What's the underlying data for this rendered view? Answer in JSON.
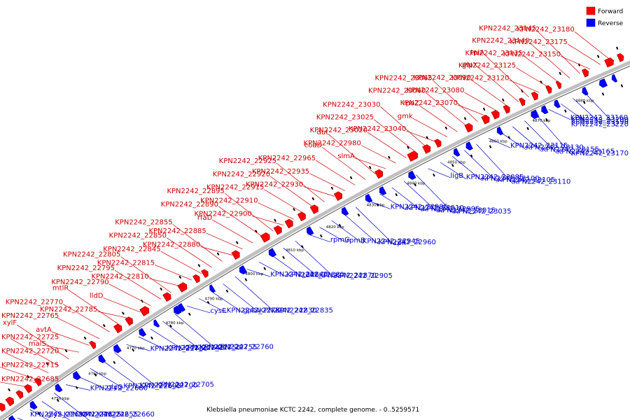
{
  "caption": "Klebsiella pneumoniae KCTC 2242, complete genome. - 0..5259571",
  "legend": {
    "forward": {
      "label": "Forward",
      "color": "#ff0000"
    },
    "reverse": {
      "label": "Reverse",
      "color": "#0000ff"
    }
  },
  "colors": {
    "forward_label": "#cc0000",
    "reverse_label": "#0000cc",
    "backbone": "#b0b0b0"
  },
  "ticks": [
    "4750 kbp",
    "4760 kbp",
    "4770 kbp",
    "4780 kbp",
    "4790 kbp",
    "4800 kbp",
    "4810 kbp",
    "4820 kbp",
    "4830 kbp",
    "4840 kbp",
    "4850 kbp",
    "4860 kbp",
    "4870 kbp",
    "4880 kbp"
  ],
  "forward_labels": [
    "KPN2242_22685",
    "KPN2242_22715",
    "KPN2242_22720",
    "KPN2242_22725",
    "xylF",
    "malS",
    "avtA",
    "KPN2242_22765",
    "KPN2242_22770",
    "mtlR",
    "KPN2242_22785",
    "lldD",
    "KPN2242_22790",
    "KPN2242_22795",
    "KPN2242_22805",
    "KPN2242_22810",
    "KPN2242_22815",
    "KPN2242_22845",
    "KPN2242_22850",
    "KPN2242_22855",
    "KPN2242_22880",
    "KPN2242_22885",
    "rfaD",
    "KPN2242_22890",
    "KPN2242_22895",
    "KPN2242_22900",
    "KPN2242_22910",
    "KPN2242_22915",
    "KPN2242_22920",
    "KPN2242_22925",
    "KPN2242_22930",
    "KPN2242_22935",
    "KPN2242_22965",
    "coaD",
    "dut",
    "slmA",
    "KPN2242_22980",
    "KPN2242_23020",
    "KPN2242_23025",
    "KPN2242_23030",
    "KPN2242_23040",
    "gmk",
    "rpoZ",
    "KPN2242_23060",
    "KPN2242_23065",
    "KPN2242_23070",
    "KPN2242_23080",
    "KPN2242_23090",
    "glpX",
    "tpiA",
    "KPN2242_23120",
    "KPN2242_23125",
    "KPN2242_23135",
    "KPN2242_23140",
    "KPN2242_23145",
    "KPN2242_23150",
    "KPN2242_23175",
    "KPN2242_23180"
  ],
  "reverse_labels": [
    "KPN2242_22690",
    "glyS",
    "KPN2242_22625",
    "KPN2242_22655",
    "KPN2242_22660",
    "KPN2242_22680",
    "glyQ",
    "KPN2242_22695",
    "KPN2242_22700",
    "KPN2242_22705",
    "KPN2242_22730",
    "KPN2242_22745",
    "KPN2242_22750",
    "KPN2242_22755",
    "KPN2242_22760",
    "cysE",
    "KPN2242_22780",
    "gpsA",
    "KPN2242_22830",
    "KPN2242_22835",
    "KPN2242_22840",
    "KPN2242_22860",
    "tdh",
    "KPN2242_22870",
    "KPN2242_22905",
    "rpmG",
    "rpmB",
    "KPN2242_22945",
    "KPN2242_22960",
    "rph",
    "KPN2242_22985",
    "KPN2242_23010",
    "KPN2242_22995",
    "KPN2242_23015",
    "KPN2242_23035",
    "ligB",
    "KPN2242_23085",
    "KPN2242_23100",
    "KPN2242_23105",
    "KPN2242_23110",
    "KPN2242_23115",
    "KPN2242_23130",
    "KPN2242_23155",
    "KPN2242_23165",
    "KPN2242_23170",
    "KPN2242_23160",
    "KPN2242_23200",
    "KPN2242_23190",
    "KPN2242_23220"
  ]
}
